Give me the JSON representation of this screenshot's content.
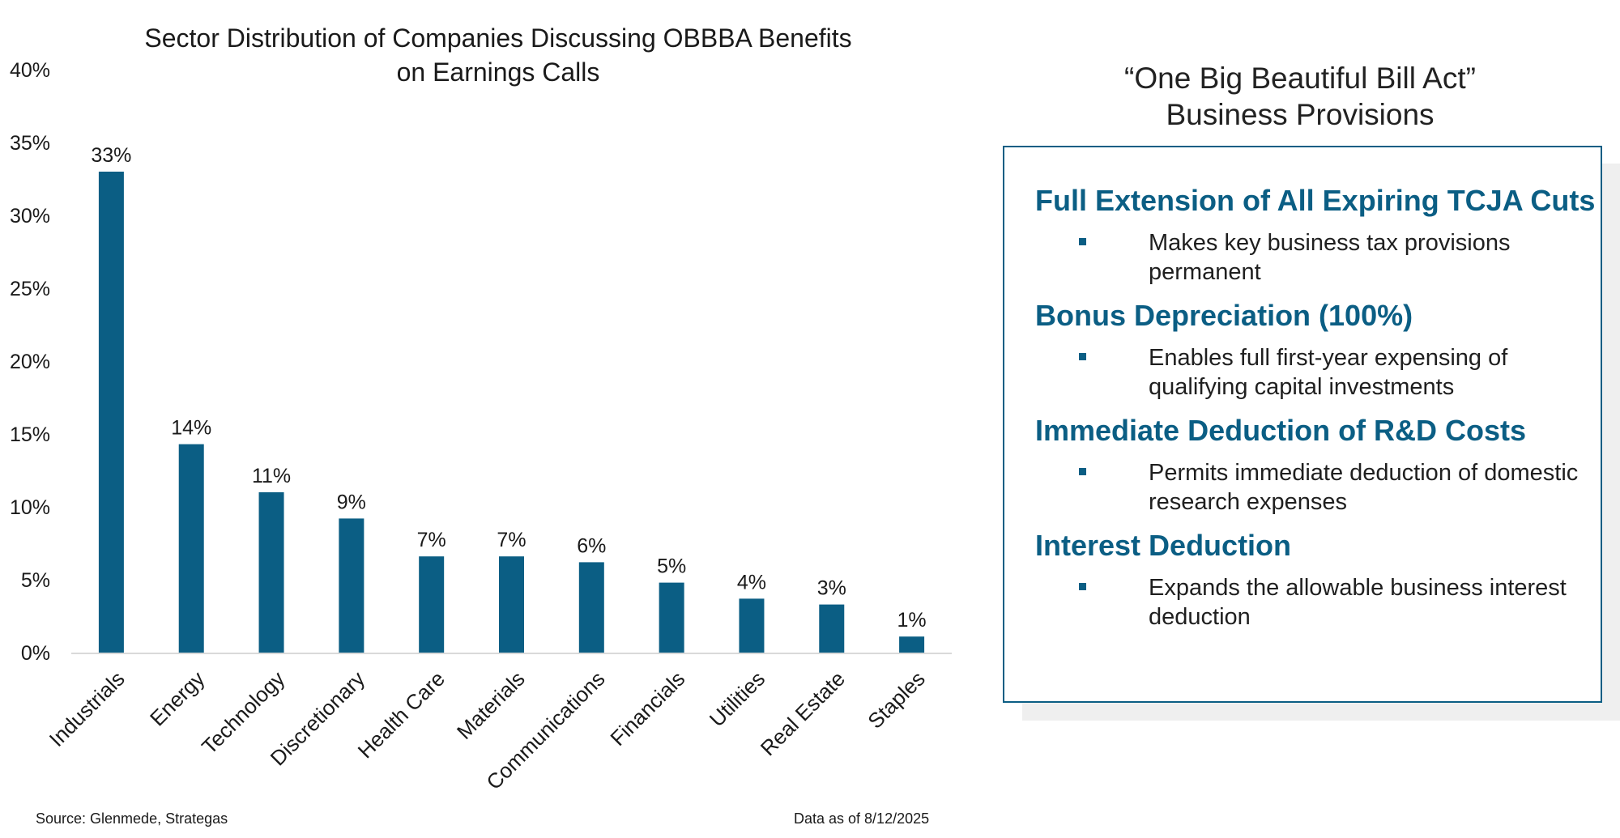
{
  "chart_data": {
    "type": "bar",
    "title": "Sector Distribution of Companies Discussing OBBBA Benefits on Earnings Calls",
    "title_lines": [
      "Sector Distribution of Companies Discussing OBBBA Benefits",
      "on Earnings Calls"
    ],
    "categories": [
      "Industrials",
      "Energy",
      "Technology",
      "Discretionary",
      "Health Care",
      "Materials",
      "Communications",
      "Financials",
      "Utilities",
      "Real Estate",
      "Staples"
    ],
    "values": [
      33,
      14.3,
      11,
      9.2,
      6.6,
      6.6,
      6.2,
      4.8,
      3.7,
      3.3,
      1.1
    ],
    "data_labels": [
      "33%",
      "14%",
      "11%",
      "9%",
      "7%",
      "7%",
      "6%",
      "5%",
      "4%",
      "3%",
      "1%"
    ],
    "ylim": [
      0,
      40
    ],
    "yticks": [
      "0%",
      "5%",
      "10%",
      "15%",
      "20%",
      "25%",
      "30%",
      "35%",
      "40%"
    ],
    "xlabel": "",
    "ylabel": "",
    "grid": false,
    "bar_color": "#0b5e84"
  },
  "panel": {
    "title_line1": "“One Big Beautiful Bill Act”",
    "title_line2": "Business Provisions",
    "accent_color": "#0b5e84",
    "provisions": [
      {
        "heading": "Full Extension of All Expiring TCJA Cuts",
        "detail": "Makes key business tax provisions permanent"
      },
      {
        "heading": "Bonus Depreciation (100%)",
        "detail": "Enables full first-year expensing of qualifying capital investments"
      },
      {
        "heading": "Immediate Deduction of R&D Costs",
        "detail": "Permits immediate deduction of domestic research expenses"
      },
      {
        "heading": "Interest Deduction",
        "detail": "Expands the allowable business interest deduction"
      }
    ]
  },
  "footer": {
    "source": "Source: Glenmede, Strategas",
    "as_of": "Data as of 8/12/2025"
  }
}
